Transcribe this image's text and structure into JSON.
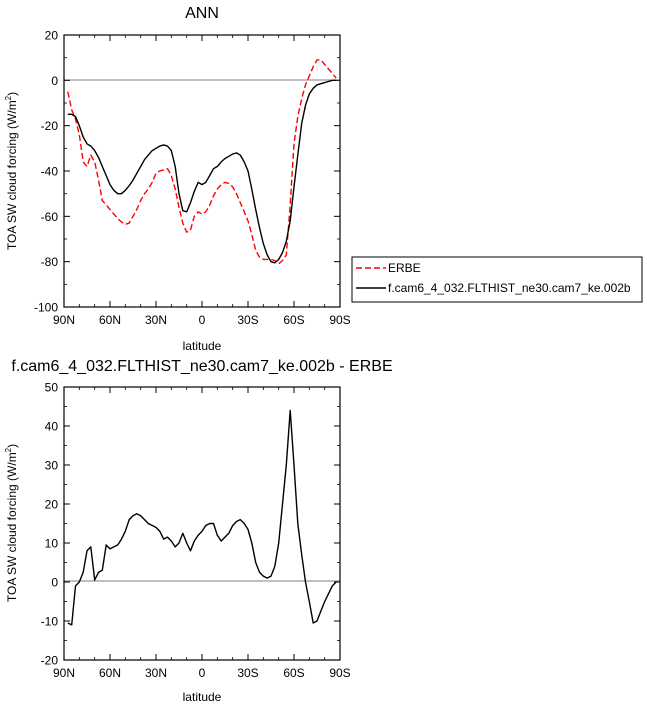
{
  "chart_data": [
    {
      "type": "line",
      "title": "ANN",
      "xlabel": "latitude",
      "ylabel": "TOA SW cloud forcing (W/m",
      "ylabel_sup": "2",
      "ylabel_tail": ")",
      "xlim": [
        90,
        -90
      ],
      "ylim": [
        -100,
        20
      ],
      "xticks": [
        {
          "value": 90,
          "label": "90N"
        },
        {
          "value": 60,
          "label": "60N"
        },
        {
          "value": 30,
          "label": "30N"
        },
        {
          "value": 0,
          "label": "0"
        },
        {
          "value": -30,
          "label": "30S"
        },
        {
          "value": -60,
          "label": "60S"
        },
        {
          "value": -90,
          "label": "90S"
        }
      ],
      "yticks": [
        20,
        0,
        -20,
        -40,
        -60,
        -80,
        -100
      ],
      "legend_position": "outside-right",
      "series": [
        {
          "name": "ERBE",
          "color": "#ff0000",
          "dash": "dashed",
          "x": [
            87.5,
            85,
            82.5,
            80,
            77.5,
            75,
            72.5,
            70,
            67.5,
            65,
            62.5,
            60,
            57.5,
            55,
            52.5,
            50,
            47.5,
            45,
            42.5,
            40,
            37.5,
            35,
            32.5,
            30,
            27.5,
            25,
            22.5,
            20,
            17.5,
            15,
            12.5,
            10,
            7.5,
            5,
            2.5,
            0,
            -2.5,
            -5,
            -7.5,
            -10,
            -12.5,
            -15,
            -17.5,
            -20,
            -22.5,
            -25,
            -27.5,
            -30,
            -32.5,
            -35,
            -37.5,
            -40,
            -42.5,
            -45,
            -47.5,
            -50,
            -52.5,
            -55,
            -57.5,
            -60,
            -62.5,
            -65,
            -67.5,
            -70,
            -72.5,
            -75,
            -77.5,
            -80,
            -82.5,
            -85,
            -87.5
          ],
          "y": [
            -5,
            -13,
            -17,
            -24,
            -36,
            -38,
            -33,
            -36,
            -44,
            -53,
            -55,
            -57,
            -59,
            -61,
            -62.5,
            -63.5,
            -63,
            -60,
            -57,
            -53,
            -50,
            -48,
            -45,
            -41,
            -40,
            -39.5,
            -39,
            -42,
            -48,
            -56,
            -63,
            -67,
            -66,
            -60,
            -58,
            -59,
            -58,
            -55,
            -51,
            -48,
            -46,
            -45,
            -45.5,
            -47,
            -50,
            -54,
            -58,
            -62,
            -68,
            -75,
            -78,
            -79,
            -79,
            -79,
            -79.5,
            -81,
            -79.5,
            -77,
            -55,
            -28,
            -16,
            -8,
            -2,
            2,
            6,
            9,
            9,
            7,
            5,
            3,
            1
          ]
        },
        {
          "name": "f.cam6_4_032.FLTHIST_ne30.cam7_ke.002b",
          "color": "#000000",
          "dash": "solid",
          "x": [
            87.5,
            85,
            82.5,
            80,
            77.5,
            75,
            72.5,
            70,
            67.5,
            65,
            62.5,
            60,
            57.5,
            55,
            52.5,
            50,
            47.5,
            45,
            42.5,
            40,
            37.5,
            35,
            32.5,
            30,
            27.5,
            25,
            22.5,
            20,
            17.5,
            15,
            12.5,
            10,
            7.5,
            5,
            2.5,
            0,
            -2.5,
            -5,
            -7.5,
            -10,
            -12.5,
            -15,
            -17.5,
            -20,
            -22.5,
            -25,
            -27.5,
            -30,
            -32.5,
            -35,
            -37.5,
            -40,
            -42.5,
            -45,
            -47.5,
            -50,
            -52.5,
            -55,
            -57.5,
            -60,
            -62.5,
            -65,
            -67.5,
            -70,
            -72.5,
            -75,
            -77.5,
            -80,
            -82.5,
            -85,
            -87.5
          ],
          "y": [
            -15,
            -15,
            -16,
            -20,
            -25,
            -28,
            -29,
            -31,
            -34,
            -38,
            -42,
            -46,
            -48.5,
            -50,
            -50,
            -48.5,
            -46.5,
            -44,
            -41,
            -38,
            -35,
            -33,
            -31,
            -30,
            -29,
            -28.5,
            -29,
            -31,
            -38,
            -50,
            -57.5,
            -58,
            -54,
            -49,
            -45,
            -46,
            -45,
            -42,
            -39,
            -38,
            -36,
            -34.5,
            -33.5,
            -32.5,
            -32,
            -33,
            -36,
            -40,
            -48,
            -57,
            -65,
            -72,
            -77,
            -80,
            -80.5,
            -79,
            -76,
            -71,
            -62,
            -47,
            -33,
            -19,
            -11,
            -6,
            -3.5,
            -2,
            -1.5,
            -1,
            -0.5,
            0,
            0
          ]
        }
      ]
    },
    {
      "type": "line",
      "title": "f.cam6_4_032.FLTHIST_ne30.cam7_ke.002b - ERBE",
      "xlabel": "latitude",
      "ylabel": "TOA SW cloud forcing (W/m",
      "ylabel_sup": "2",
      "ylabel_tail": ")",
      "xlim": [
        90,
        -90
      ],
      "ylim": [
        -20,
        50
      ],
      "xticks": [
        {
          "value": 90,
          "label": "90N"
        },
        {
          "value": 60,
          "label": "60N"
        },
        {
          "value": 30,
          "label": "30N"
        },
        {
          "value": 0,
          "label": "0"
        },
        {
          "value": -30,
          "label": "30S"
        },
        {
          "value": -60,
          "label": "60S"
        },
        {
          "value": -90,
          "label": "90S"
        }
      ],
      "yticks": [
        50,
        40,
        30,
        20,
        10,
        0,
        -10,
        -20
      ],
      "series": [
        {
          "name": "",
          "color": "#000000",
          "dash": "solid",
          "x": [
            87.5,
            85,
            82.5,
            80,
            77.5,
            75,
            72.5,
            70,
            67.5,
            65,
            62.5,
            60,
            57.5,
            55,
            52.5,
            50,
            47.5,
            45,
            42.5,
            40,
            37.5,
            35,
            32.5,
            30,
            27.5,
            25,
            22.5,
            20,
            17.5,
            15,
            12.5,
            10,
            7.5,
            5,
            2.5,
            0,
            -2.5,
            -5,
            -7.5,
            -10,
            -12.5,
            -15,
            -17.5,
            -20,
            -22.5,
            -25,
            -27.5,
            -30,
            -32.5,
            -35,
            -37.5,
            -40,
            -42.5,
            -45,
            -47.5,
            -50,
            -52.5,
            -55,
            -57.5,
            -60,
            -62.5,
            -65,
            -67.5,
            -70,
            -72.5,
            -75,
            -77.5,
            -80,
            -82.5,
            -85,
            -87.5
          ],
          "y": [
            -10.5,
            -11,
            -1,
            0,
            2.5,
            8,
            9,
            0.5,
            2.5,
            3,
            9.5,
            8.5,
            9,
            9.5,
            11,
            13,
            16,
            17,
            17.5,
            17,
            16,
            15,
            14.5,
            14,
            13,
            11,
            11.5,
            10.5,
            9,
            10,
            12.5,
            10,
            8,
            10.5,
            12,
            13,
            14.5,
            15,
            15,
            12,
            10.5,
            11.5,
            12.5,
            14.5,
            15.5,
            16,
            15,
            13.5,
            10,
            5,
            2.5,
            1.5,
            1,
            1.5,
            4,
            10,
            20,
            30,
            44,
            30,
            15,
            7,
            0,
            -5,
            -10.5,
            -10,
            -7.5,
            -5,
            -3,
            -1,
            0
          ]
        }
      ]
    }
  ]
}
